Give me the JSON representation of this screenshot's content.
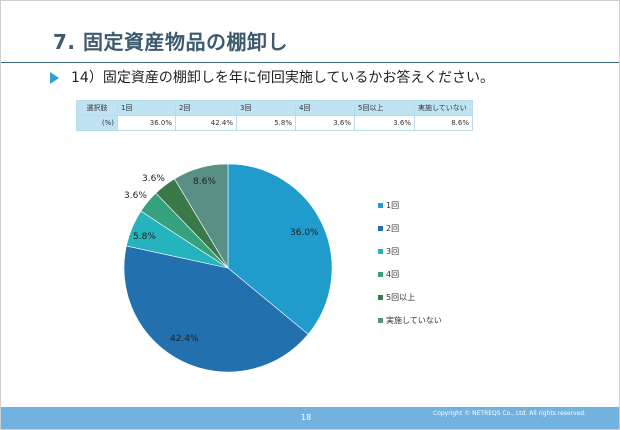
{
  "slide": {
    "title": "7. 固定資産物品の棚卸し",
    "question": "14）固定資産の棚卸しを年に何回実施しているかお答えください。",
    "page_number": "18",
    "copyright": "Copyright © NETREQS Co., Ltd. All rights reserved."
  },
  "table": {
    "header_label": "選択肢",
    "row_label": "(%)",
    "columns": [
      "1回",
      "2回",
      "3回",
      "4回",
      "5回以上",
      "実施していない"
    ],
    "values": [
      "36.0%",
      "42.4%",
      "5.8%",
      "3.6%",
      "3.6%",
      "8.6%"
    ]
  },
  "chart_data": {
    "type": "pie",
    "title": "",
    "categories": [
      "1回",
      "2回",
      "3回",
      "4回",
      "5回以上",
      "実施していない"
    ],
    "values": [
      36.0,
      42.4,
      5.8,
      3.6,
      3.6,
      8.6
    ],
    "labels": [
      "36.0%",
      "42.4%",
      "5.8%",
      "3.6%",
      "3.6%",
      "8.6%"
    ],
    "colors": [
      "#1f9bcc",
      "#2270ae",
      "#25b3bd",
      "#35a17f",
      "#3a7a4a",
      "#5a8f86"
    ],
    "start_angle": "12 o'clock, clockwise",
    "legend_position": "right"
  }
}
